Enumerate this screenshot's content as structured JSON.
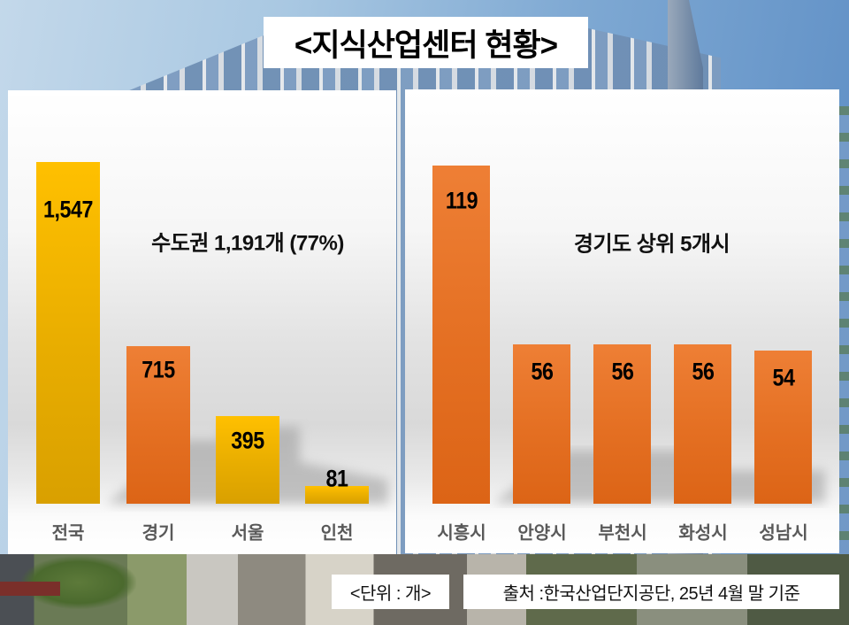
{
  "title": "<지식산업센터 현황>",
  "left_panel": {
    "heading": "수도권 1,191개 (77%)"
  },
  "right_panel": {
    "heading": "경기도 상위 5개시"
  },
  "footer": {
    "unit": "<단위 : 개>",
    "source": "출처 :한국산업단지공단, 25년 4월 말 기준"
  },
  "colors": {
    "yellow_bar": "#FFC000",
    "orange_bar": "#ED7D31",
    "category_text": "#595959",
    "value_text": "#000000"
  },
  "chart_data": [
    {
      "type": "bar",
      "title": "수도권 1,191개 (77%)",
      "xlabel": "",
      "ylabel": "",
      "unit": "개",
      "grid": false,
      "legend": "none",
      "categories": [
        "전국",
        "경기",
        "서울",
        "인천"
      ],
      "values": [
        1547,
        715,
        395,
        81
      ],
      "value_labels": [
        "1,547",
        "715",
        "395",
        "81"
      ],
      "bar_colors": [
        "#FFC000",
        "#ED7D31",
        "#FFC000",
        "#FFC000"
      ],
      "ylim": [
        0,
        1547
      ]
    },
    {
      "type": "bar",
      "title": "경기도 상위 5개시",
      "xlabel": "",
      "ylabel": "",
      "unit": "개",
      "grid": false,
      "legend": "none",
      "categories": [
        "시흥시",
        "안양시",
        "부천시",
        "화성시",
        "성남시"
      ],
      "values": [
        119,
        56,
        56,
        56,
        54
      ],
      "value_labels": [
        "119",
        "56",
        "56",
        "56",
        "54"
      ],
      "bar_colors": [
        "#ED7D31",
        "#ED7D31",
        "#ED7D31",
        "#ED7D31",
        "#ED7D31"
      ],
      "ylim": [
        0,
        119
      ]
    }
  ]
}
